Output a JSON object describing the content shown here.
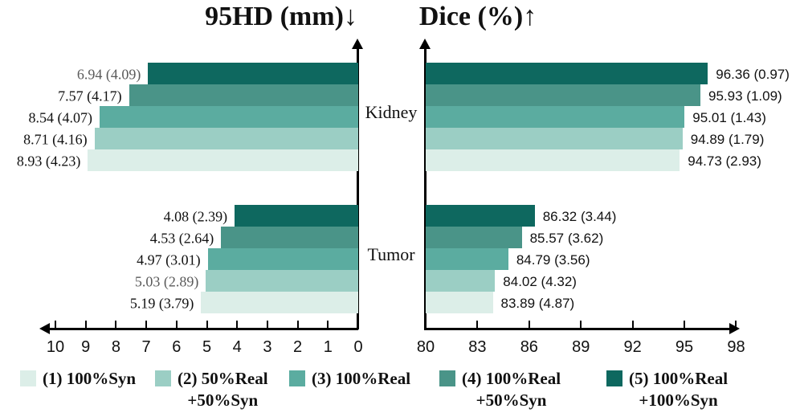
{
  "colors": {
    "axis": "#000000",
    "label_text": "#111111",
    "muted_label_text": "#5a5a5a"
  },
  "chart_data": {
    "type": "bar",
    "layout": "diverging-horizontal-grouped",
    "bar_colors_top_to_bottom": [
      "#0E685F",
      "#4A9488",
      "#5BACA0",
      "#9BCEC4",
      "#DCEEE8"
    ],
    "legend": [
      {
        "color": "#DCEEE8",
        "line1": "(1) 100%Syn",
        "line2": ""
      },
      {
        "color": "#9BCEC4",
        "line1": "(2) 50%Real",
        "line2": "+50%Syn"
      },
      {
        "color": "#5BACA0",
        "line1": "(3) 100%Real",
        "line2": ""
      },
      {
        "color": "#4A9488",
        "line1": "(4) 100%Real",
        "line2": "+50%Syn"
      },
      {
        "color": "#0E685F",
        "line1": "(5) 100%Real",
        "line2": "+100%Syn"
      }
    ],
    "panels": [
      {
        "id": "hd95",
        "title": "95HD (mm)↓",
        "direction": "left",
        "axis": {
          "min": 0,
          "max": 10,
          "ticks": [
            "10",
            "9",
            "8",
            "7",
            "6",
            "5",
            "4",
            "3",
            "2",
            "1",
            "0"
          ]
        },
        "groups": [
          {
            "name": "Kidney",
            "bars": [
              {
                "value": 6.94,
                "sd": 4.09,
                "label": "6.94 (4.09)",
                "muted": true
              },
              {
                "value": 7.57,
                "sd": 4.17,
                "label": "7.57 (4.17)",
                "muted": false
              },
              {
                "value": 8.54,
                "sd": 4.07,
                "label": "8.54 (4.07)",
                "muted": false
              },
              {
                "value": 8.71,
                "sd": 4.16,
                "label": "8.71 (4.16)",
                "muted": false
              },
              {
                "value": 8.93,
                "sd": 4.23,
                "label": "8.93 (4.23)",
                "muted": false
              }
            ]
          },
          {
            "name": "Tumor",
            "bars": [
              {
                "value": 4.08,
                "sd": 2.39,
                "label": "4.08 (2.39)",
                "muted": false
              },
              {
                "value": 4.53,
                "sd": 2.64,
                "label": "4.53 (2.64)",
                "muted": false
              },
              {
                "value": 4.97,
                "sd": 3.01,
                "label": "4.97 (3.01)",
                "muted": false
              },
              {
                "value": 5.03,
                "sd": 2.89,
                "label": "5.03 (2.89)",
                "muted": true
              },
              {
                "value": 5.19,
                "sd": 3.79,
                "label": "5.19 (3.79)",
                "muted": false
              }
            ]
          }
        ]
      },
      {
        "id": "dice",
        "title": "Dice (%)↑",
        "direction": "right",
        "axis": {
          "min": 80,
          "max": 98,
          "ticks": [
            "80",
            "83",
            "86",
            "89",
            "92",
            "95",
            "98"
          ]
        },
        "groups": [
          {
            "name": "Kidney",
            "bars": [
              {
                "value": 96.36,
                "sd": 0.97,
                "label": "96.36 (0.97)",
                "muted": false
              },
              {
                "value": 95.93,
                "sd": 1.09,
                "label": "95.93 (1.09)",
                "muted": false
              },
              {
                "value": 95.01,
                "sd": 1.43,
                "label": "95.01 (1.43)",
                "muted": false
              },
              {
                "value": 94.89,
                "sd": 1.79,
                "label": "94.89 (1.79)",
                "muted": false
              },
              {
                "value": 94.73,
                "sd": 2.93,
                "label": "94.73 (2.93)",
                "muted": false
              }
            ]
          },
          {
            "name": "Tumor",
            "bars": [
              {
                "value": 86.32,
                "sd": 3.44,
                "label": "86.32 (3.44)",
                "muted": false
              },
              {
                "value": 85.57,
                "sd": 3.62,
                "label": "85.57 (3.62)",
                "muted": false
              },
              {
                "value": 84.79,
                "sd": 3.56,
                "label": "84.79 (3.56)",
                "muted": false
              },
              {
                "value": 84.02,
                "sd": 4.32,
                "label": "84.02 (4.32)",
                "muted": false
              },
              {
                "value": 83.89,
                "sd": 4.87,
                "label": "83.89 (4.87)",
                "muted": false
              }
            ]
          }
        ]
      }
    ]
  }
}
